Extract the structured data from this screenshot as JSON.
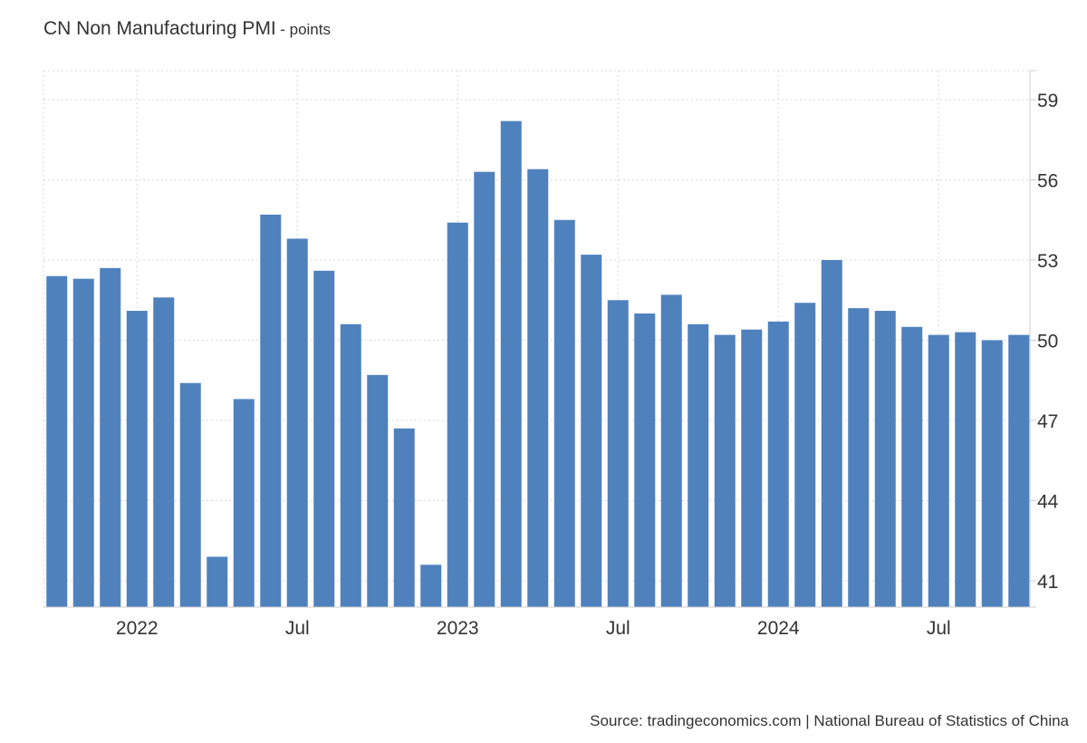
{
  "chart_data": {
    "type": "bar",
    "title": "CN Non Manufacturing PMI",
    "units": "- points",
    "source": "Source: tradingeconomics.com | National Bureau of Statistics of China",
    "color": "#4f81bd",
    "grid": true,
    "y_axis_side": "right",
    "ylim": [
      40,
      60
    ],
    "yticks": [
      41,
      44,
      47,
      50,
      53,
      56,
      59
    ],
    "x_tick_labels": [
      {
        "label": "2022",
        "index": 3
      },
      {
        "label": "Jul",
        "index": 9
      },
      {
        "label": "2023",
        "index": 15
      },
      {
        "label": "Jul",
        "index": 21
      },
      {
        "label": "2024",
        "index": 27
      },
      {
        "label": "Jul",
        "index": 33
      }
    ],
    "categories": [
      "2021-10",
      "2021-11",
      "2021-12",
      "2022-01",
      "2022-02",
      "2022-03",
      "2022-04",
      "2022-05",
      "2022-06",
      "2022-07",
      "2022-08",
      "2022-09",
      "2022-10",
      "2022-11",
      "2022-12",
      "2023-01",
      "2023-02",
      "2023-03",
      "2023-04",
      "2023-05",
      "2023-06",
      "2023-07",
      "2023-08",
      "2023-09",
      "2023-10",
      "2023-11",
      "2023-12",
      "2024-01",
      "2024-02",
      "2024-03",
      "2024-04",
      "2024-05",
      "2024-06",
      "2024-07",
      "2024-08",
      "2024-09",
      "2024-10"
    ],
    "values": [
      52.4,
      52.3,
      52.7,
      51.1,
      51.6,
      48.4,
      41.9,
      47.8,
      54.7,
      53.8,
      52.6,
      50.6,
      48.7,
      46.7,
      41.6,
      54.4,
      56.3,
      58.2,
      56.4,
      54.5,
      53.2,
      51.5,
      51.0,
      51.7,
      50.6,
      50.2,
      50.4,
      50.7,
      51.4,
      53.0,
      51.2,
      51.1,
      50.5,
      50.2,
      50.3,
      50.0,
      50.2
    ]
  }
}
